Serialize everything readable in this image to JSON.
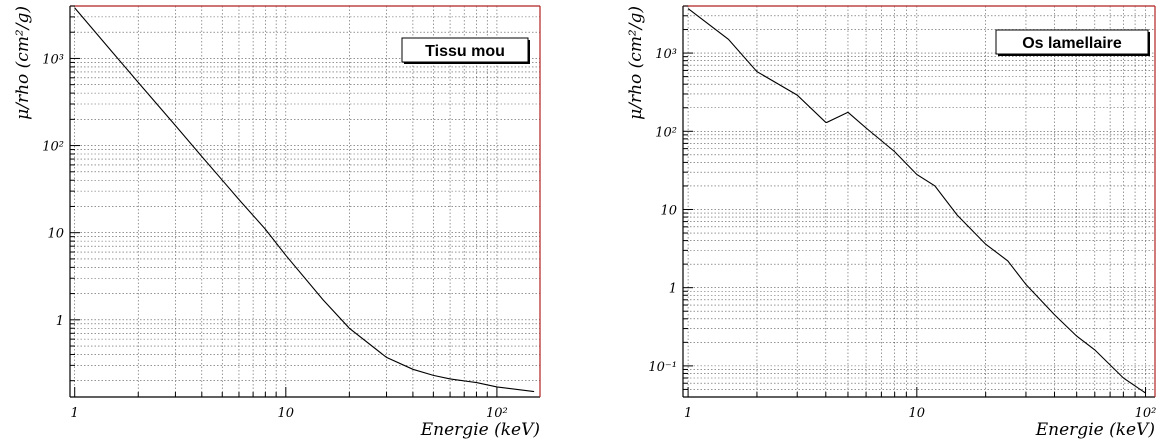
{
  "chart_data": [
    {
      "type": "line",
      "legend_label": "Tissu mou",
      "legend_placement": "top-right",
      "xlabel": "Energie (keV)",
      "ylabel": "μ/rho (cm²/g)",
      "x_scale": "log",
      "y_scale": "log",
      "xlim": [
        0.95,
        160
      ],
      "ylim": [
        0.13,
        4000
      ],
      "grid": true,
      "frame_color": "#b22222",
      "x_ticks": [
        {
          "value": 1,
          "label": "1"
        },
        {
          "value": 10,
          "label": "10"
        },
        {
          "value": 100,
          "label": "10²"
        }
      ],
      "y_ticks": [
        {
          "value": 1,
          "label": "1"
        },
        {
          "value": 10,
          "label": "10"
        },
        {
          "value": 100,
          "label": "10²"
        },
        {
          "value": 1000,
          "label": "10³"
        }
      ],
      "series": [
        {
          "x": [
            1,
            1.5,
            2,
            3,
            4,
            5,
            6,
            8,
            10,
            15,
            20,
            30,
            40,
            50,
            60,
            80,
            100,
            150
          ],
          "y": [
            3800,
            1200,
            530,
            170,
            75,
            40,
            24,
            11,
            5.5,
            1.7,
            0.8,
            0.37,
            0.27,
            0.23,
            0.21,
            0.19,
            0.17,
            0.15
          ]
        }
      ]
    },
    {
      "type": "line",
      "legend_label": "Os lamellaire",
      "legend_placement": "top-right",
      "xlabel": "Energie (keV)",
      "ylabel": "μ/rho (cm²/g)",
      "x_scale": "log",
      "y_scale": "log",
      "xlim": [
        0.95,
        110
      ],
      "ylim": [
        0.04,
        4000
      ],
      "grid": true,
      "frame_color": "#b22222",
      "x_ticks": [
        {
          "value": 1,
          "label": "1"
        },
        {
          "value": 10,
          "label": "10"
        },
        {
          "value": 100,
          "label": "10²"
        }
      ],
      "y_ticks": [
        {
          "value": 0.1,
          "label": "10⁻¹"
        },
        {
          "value": 1,
          "label": "1"
        },
        {
          "value": 10,
          "label": "10"
        },
        {
          "value": 100,
          "label": "10²"
        },
        {
          "value": 1000,
          "label": "10³"
        }
      ],
      "series": [
        {
          "x": [
            1,
            1.5,
            2,
            3,
            4,
            4.04,
            5,
            6,
            8,
            10,
            12,
            15,
            20,
            25,
            30,
            40,
            50,
            60,
            80,
            100
          ],
          "y": [
            3700,
            1500,
            580,
            290,
            130,
            130,
            175,
            110,
            55,
            28,
            20,
            8.5,
            3.6,
            2.2,
            1.1,
            0.45,
            0.24,
            0.16,
            0.07,
            0.045
          ]
        }
      ]
    }
  ]
}
